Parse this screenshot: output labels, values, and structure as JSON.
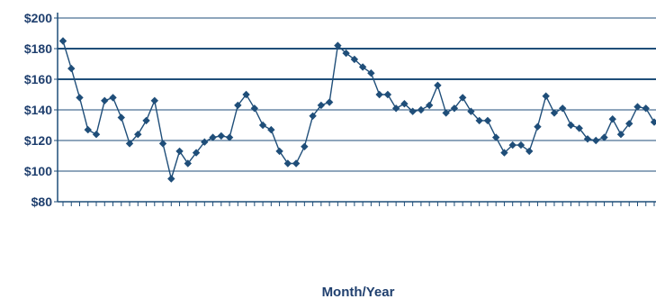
{
  "chart_data": {
    "type": "line",
    "title": "",
    "xlabel": "Month/Year",
    "ylabel": "",
    "x_tick_labels_visible": false,
    "ylim": [
      80,
      200
    ],
    "y_ticks": [
      80,
      100,
      120,
      140,
      160,
      180,
      200
    ],
    "y_tick_labels": [
      "$80",
      "$100",
      "$120",
      "$140",
      "$160",
      "$180",
      "$200"
    ],
    "grid": "horizontal",
    "legend": "none",
    "marker": "diamond",
    "colors": {
      "series": "#1f4e79",
      "axis_text": "#1f3f6e",
      "gridline": "#1f4e79"
    },
    "series": [
      {
        "values": [
          185,
          167,
          148,
          127,
          124,
          146,
          148,
          135,
          118,
          124,
          133,
          146,
          118,
          95,
          113,
          105,
          112,
          119,
          122,
          123,
          122,
          143,
          150,
          141,
          130,
          127,
          113,
          105,
          105,
          116,
          136,
          143,
          145,
          182,
          177,
          173,
          168,
          164,
          150,
          150,
          141,
          144,
          139,
          140,
          143,
          156,
          138,
          141,
          148,
          139,
          133,
          133,
          122,
          112,
          117,
          117,
          113,
          129,
          149,
          138,
          141,
          130,
          128,
          121,
          120,
          122,
          134,
          124,
          131,
          142,
          141,
          132
        ]
      }
    ]
  }
}
